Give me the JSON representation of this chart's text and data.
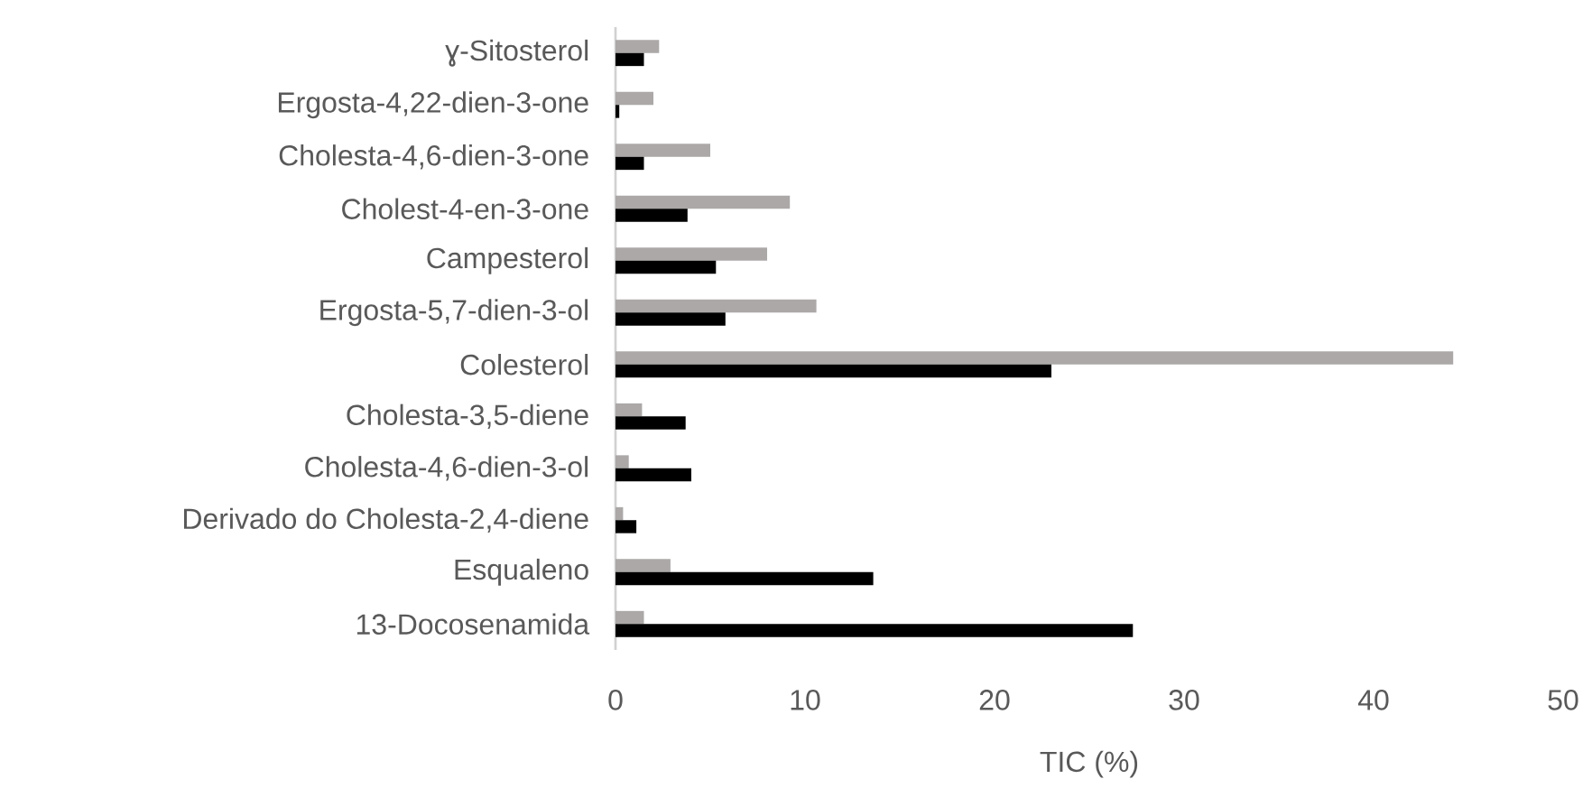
{
  "chart_data": {
    "type": "bar",
    "orientation": "horizontal",
    "xlabel": "TIC (%)",
    "categories": [
      "ɣ-Sitosterol",
      "Ergosta-4,22-dien-3-one",
      "Cholesta-4,6-dien-3-one",
      "Cholest-4-en-3-one",
      "Campesterol",
      "Ergosta-5,7-dien-3-ol",
      "Colesterol",
      "Cholesta-3,5-diene",
      "Cholesta-4,6-dien-3-ol",
      "Derivado do Cholesta-2,4-diene",
      "Esqualeno",
      "13-Docosenamida"
    ],
    "series": [
      {
        "color": "#aba8a7",
        "values": [
          2.3,
          2.0,
          5.0,
          9.2,
          8.0,
          10.6,
          44.2,
          1.4,
          0.7,
          0.4,
          2.9,
          1.5
        ]
      },
      {
        "color": "#000000",
        "values": [
          1.5,
          0.2,
          1.5,
          3.8,
          5.3,
          5.8,
          23.0,
          3.7,
          4.0,
          1.1,
          13.6,
          27.3
        ]
      }
    ],
    "xlim": [
      0,
      50
    ],
    "xticks": [
      0,
      10,
      20,
      30,
      40,
      50
    ]
  }
}
